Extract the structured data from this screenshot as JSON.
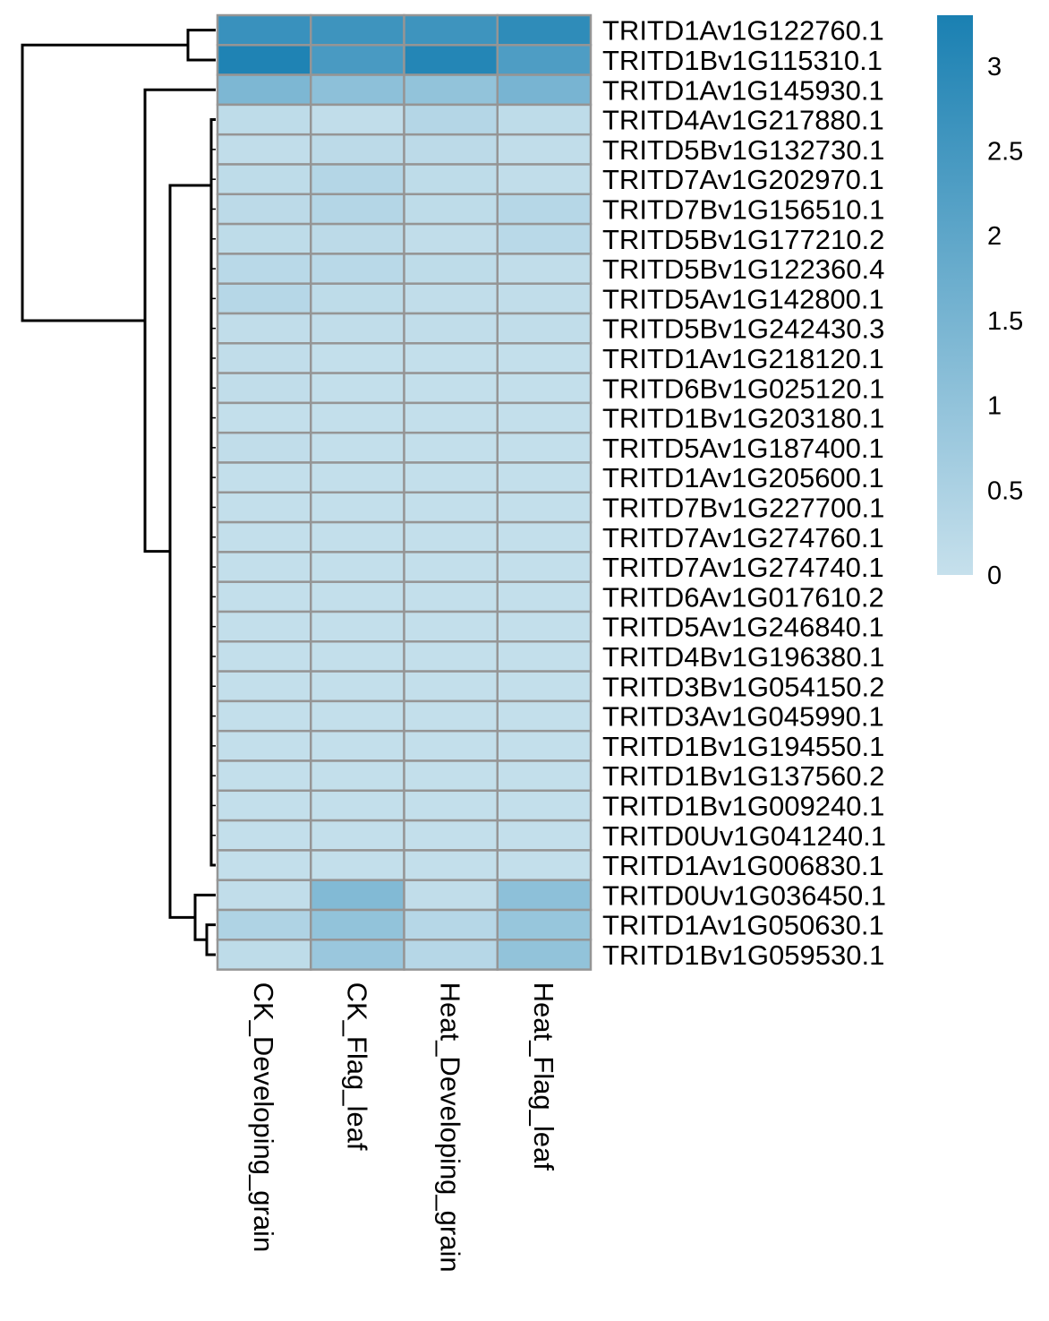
{
  "chart_data": {
    "type": "heatmap",
    "title": "",
    "xlabel": "",
    "ylabel": "",
    "columns": [
      "CK_Developing_grain",
      "CK_Flag_leaf",
      "Heat_Developing_grain",
      "Heat_Flag_leaf"
    ],
    "rows": [
      "TRITD1Av1G122760.1",
      "TRITD1Bv1G115310.1",
      "TRITD1Av1G145930.1",
      "TRITD4Av1G217880.1",
      "TRITD5Bv1G132730.1",
      "TRITD7Av1G202970.1",
      "TRITD7Bv1G156510.1",
      "TRITD5Bv1G177210.2",
      "TRITD5Bv1G122360.4",
      "TRITD5Av1G142800.1",
      "TRITD5Bv1G242430.3",
      "TRITD1Av1G218120.1",
      "TRITD6Bv1G025120.1",
      "TRITD1Bv1G203180.1",
      "TRITD5Av1G187400.1",
      "TRITD1Av1G205600.1",
      "TRITD7Bv1G227700.1",
      "TRITD7Av1G274760.1",
      "TRITD7Av1G274740.1",
      "TRITD6Av1G017610.2",
      "TRITD5Av1G246840.1",
      "TRITD4Bv1G196380.1",
      "TRITD3Bv1G054150.2",
      "TRITD3Av1G045990.1",
      "TRITD1Bv1G194550.1",
      "TRITD1Bv1G137560.2",
      "TRITD1Bv1G009240.1",
      "TRITD0Uv1G041240.1",
      "TRITD1Av1G006830.1",
      "TRITD0Uv1G036450.1",
      "TRITD1Av1G050630.1",
      "TRITD1Bv1G059530.1"
    ],
    "values": [
      [
        2.7,
        2.6,
        2.6,
        2.9
      ],
      [
        3.2,
        2.4,
        3.1,
        2.3
      ],
      [
        1.4,
        1.1,
        1.0,
        1.5
      ],
      [
        0.15,
        0.1,
        0.35,
        0.15
      ],
      [
        0.1,
        0.2,
        0.2,
        0.1
      ],
      [
        0.15,
        0.35,
        0.15,
        0.1
      ],
      [
        0.2,
        0.35,
        0.15,
        0.3
      ],
      [
        0.15,
        0.2,
        0.1,
        0.25
      ],
      [
        0.25,
        0.25,
        0.15,
        0.1
      ],
      [
        0.3,
        0.15,
        0.1,
        0.1
      ],
      [
        0.1,
        0.1,
        0.1,
        0.1
      ],
      [
        0.1,
        0.05,
        0.05,
        0.05
      ],
      [
        0.1,
        0.05,
        0.05,
        0.05
      ],
      [
        0.05,
        0.05,
        0.05,
        0.05
      ],
      [
        0.1,
        0.05,
        0.05,
        0.05
      ],
      [
        0.05,
        0.05,
        0.05,
        0.05
      ],
      [
        0.05,
        0.05,
        0.05,
        0.05
      ],
      [
        0.05,
        0.05,
        0.05,
        0.05
      ],
      [
        0.05,
        0.05,
        0.05,
        0.05
      ],
      [
        0.05,
        0.05,
        0.05,
        0.05
      ],
      [
        0.05,
        0.05,
        0.05,
        0.05
      ],
      [
        0.05,
        0.05,
        0.05,
        0.05
      ],
      [
        0.05,
        0.05,
        0.05,
        0.05
      ],
      [
        0.05,
        0.05,
        0.05,
        0.05
      ],
      [
        0.05,
        0.05,
        0.05,
        0.05
      ],
      [
        0.05,
        0.05,
        0.05,
        0.05
      ],
      [
        0.05,
        0.05,
        0.05,
        0.05
      ],
      [
        0.05,
        0.05,
        0.05,
        0.05
      ],
      [
        0.05,
        0.05,
        0.05,
        0.05
      ],
      [
        0.1,
        1.3,
        0.1,
        1.1
      ],
      [
        0.45,
        1.0,
        0.3,
        0.9
      ],
      [
        0.15,
        0.85,
        0.3,
        1.0
      ]
    ],
    "legend": {
      "ticks": [
        0,
        0.5,
        1,
        1.5,
        2,
        2.5,
        3
      ],
      "tick_labels": [
        "0",
        "0.5",
        "1",
        "1.5",
        "2",
        "2.5",
        "3"
      ],
      "range": [
        0,
        3.3
      ],
      "color_low": "#c6e0ec",
      "color_high": "#1a80b2",
      "position": "top-right"
    },
    "cell_border_color": "#959595",
    "row_dendrogram": true,
    "grid": true
  }
}
